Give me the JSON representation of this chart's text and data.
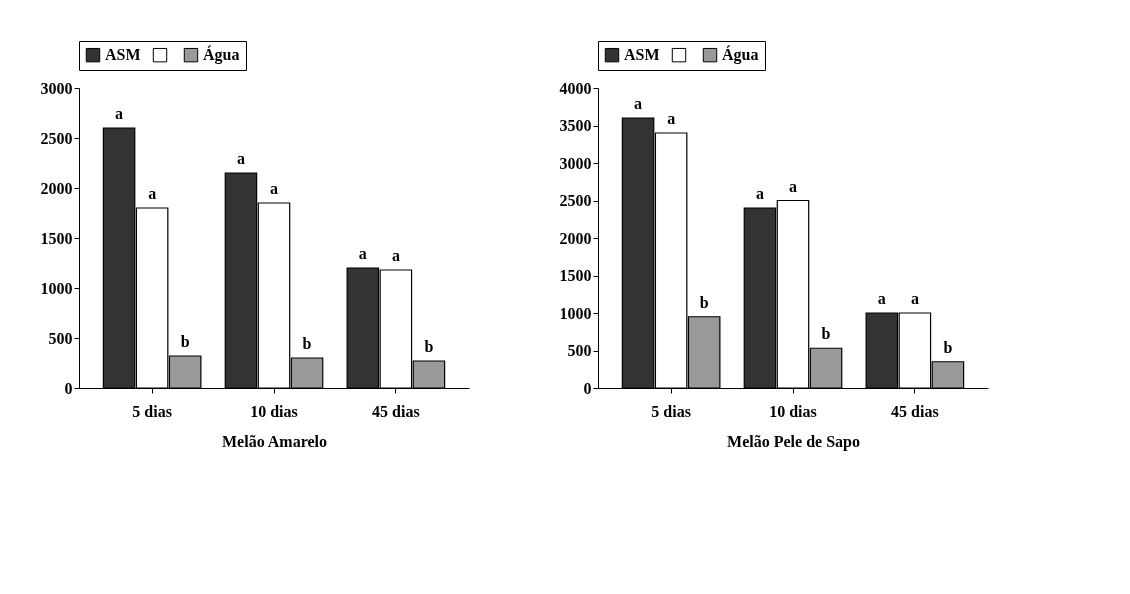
{
  "chart_data": [
    {
      "type": "bar",
      "xlabel": "Melão Amarelo",
      "categories": [
        "5 dias",
        "10 dias",
        "45 dias"
      ],
      "legend": "top",
      "grid": false,
      "ylim": [
        0,
        3000
      ],
      "yticks": [
        0,
        500,
        1000,
        1500,
        2000,
        2500,
        3000
      ],
      "series": [
        {
          "name": "ASM",
          "color": "#333333",
          "values": [
            2600,
            2150,
            1200
          ]
        },
        {
          "color": "#ffffff",
          "values": [
            1800,
            1850,
            1180
          ]
        },
        {
          "name": "Água",
          "color": "#999999",
          "values": [
            320,
            300,
            270
          ]
        }
      ],
      "annotations": [
        "a",
        "a",
        "b",
        "a",
        "a",
        "b",
        "a",
        "a",
        "b"
      ]
    },
    {
      "type": "bar",
      "xlabel": "Melão Pele de Sapo",
      "categories": [
        "5 dias",
        "10 dias",
        "45 dias"
      ],
      "legend": "top",
      "grid": false,
      "ylim": [
        0,
        4000
      ],
      "yticks": [
        0,
        500,
        1000,
        1500,
        2000,
        2500,
        3000,
        3500,
        4000
      ],
      "series": [
        {
          "name": "ASM",
          "color": "#333333",
          "values": [
            3600,
            2400,
            1000
          ]
        },
        {
          "color": "#ffffff",
          "values": [
            3400,
            2500,
            1000
          ]
        },
        {
          "name": "Água",
          "color": "#999999",
          "values": [
            950,
            530,
            350
          ]
        }
      ],
      "annotations": [
        "a",
        "a",
        "b",
        "a",
        "a",
        "b",
        "a",
        "a",
        "b"
      ]
    }
  ]
}
